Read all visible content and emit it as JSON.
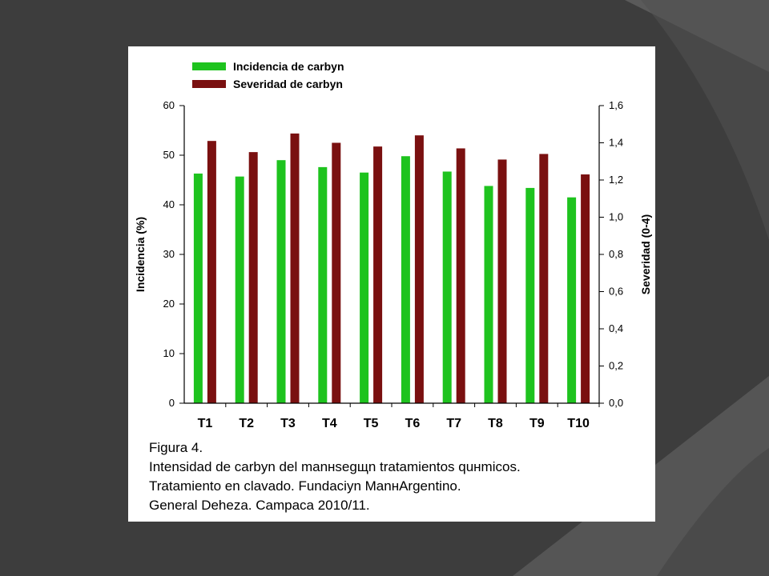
{
  "slide": {
    "caption": [
      "Figura 4.",
      "Intensidad de carbyn del manнsegщn tratamientos quнmicos.",
      "Tratamiento en clavado. Fundaciyn ManнArgentino.",
      "General Deheza. Campaсa 2010/11."
    ]
  },
  "chart_data": {
    "type": "bar",
    "categories": [
      "T1",
      "T2",
      "T3",
      "T4",
      "T5",
      "T6",
      "T7",
      "T8",
      "T9",
      "T10"
    ],
    "series": [
      {
        "name": "Incidencia de carbyn",
        "axis": "left",
        "color": "#1ec31e",
        "values": [
          46.3,
          45.7,
          49.0,
          47.6,
          46.5,
          49.8,
          46.7,
          43.8,
          43.4,
          41.5
        ]
      },
      {
        "name": "Severidad de carbyn",
        "axis": "right",
        "color": "#7a1010",
        "values": [
          1.41,
          1.35,
          1.45,
          1.4,
          1.38,
          1.44,
          1.37,
          1.31,
          1.34,
          1.23
        ]
      }
    ],
    "ylabel": "Incidencia (%)",
    "ylabel_right": "Severidad (0-4)",
    "ylim": [
      0,
      60
    ],
    "ylim_right": [
      0,
      1.6
    ],
    "yticks": [
      "0",
      "10",
      "20",
      "30",
      "40",
      "50",
      "60"
    ],
    "yticks_right": [
      "0,0",
      "0,2",
      "0,4",
      "0,6",
      "0,8",
      "1,0",
      "1,2",
      "1,4",
      "1,6"
    ],
    "grid": false,
    "legend_position": "top-left"
  }
}
